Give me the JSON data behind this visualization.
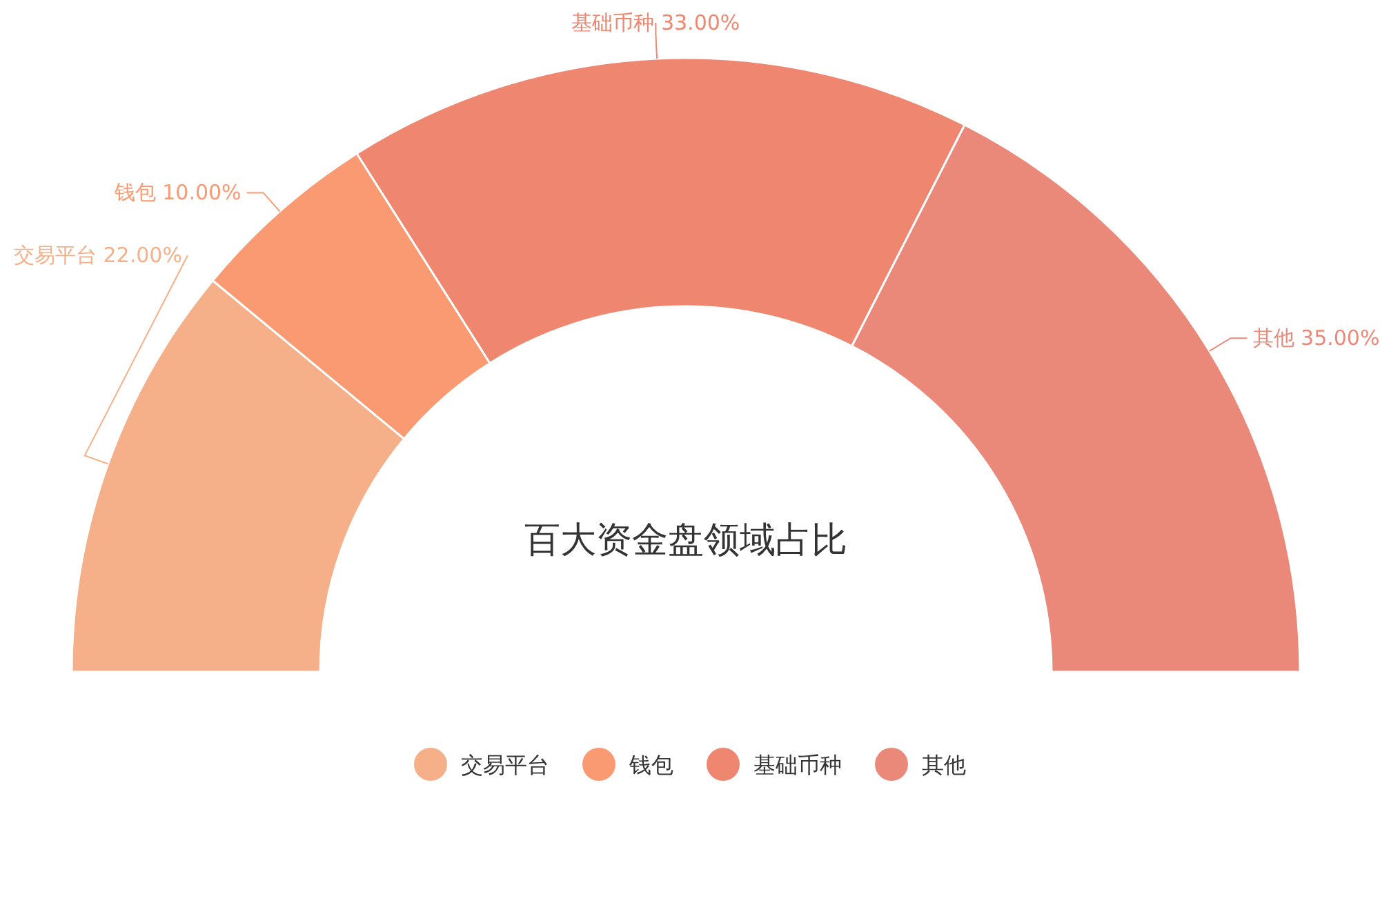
{
  "chart_data": {
    "type": "donut",
    "title": "百大资金盘领域占比",
    "categories": [
      "交易平台",
      "钱包",
      "基础币种",
      "其他"
    ],
    "values": [
      22,
      10,
      33,
      35
    ],
    "colors": [
      "#f5b08a",
      "#f99a72",
      "#ef8670",
      "#ea897a"
    ],
    "value_labels": [
      "22.00%",
      "10.00%",
      "33.00%",
      "35.00%"
    ],
    "legend": "bottom"
  }
}
